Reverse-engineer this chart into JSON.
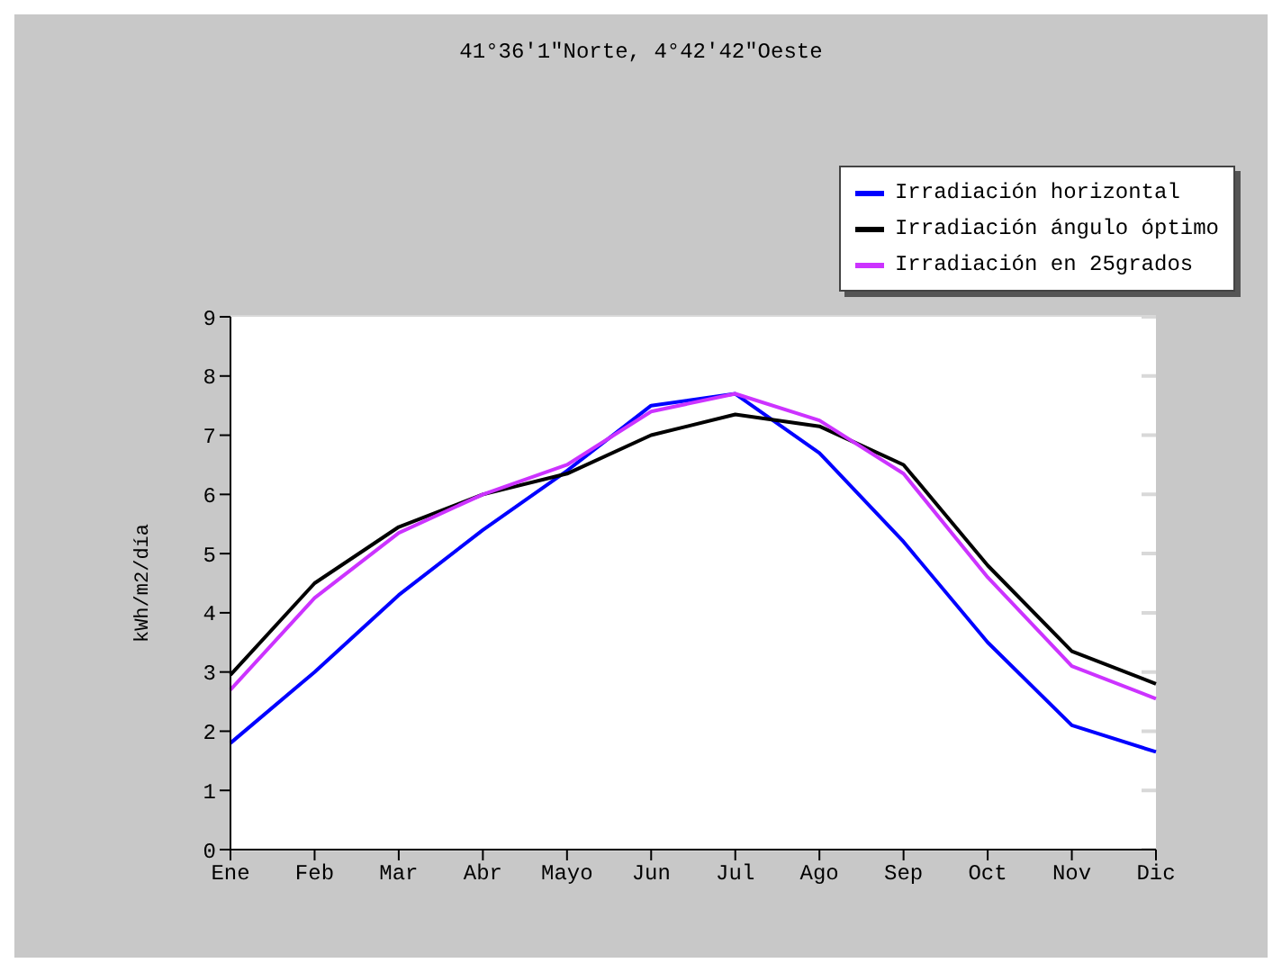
{
  "chart_data": {
    "type": "line",
    "title": "41°36'1\"Norte, 4°42'42\"Oeste",
    "ylabel": "kWh/m2/día",
    "categories": [
      "Ene",
      "Feb",
      "Mar",
      "Abr",
      "Mayo",
      "Jun",
      "Jul",
      "Ago",
      "Sep",
      "Oct",
      "Nov",
      "Dic"
    ],
    "series": [
      {
        "name": "Irradiación horizontal",
        "color": "#0000ff",
        "values": [
          1.8,
          3.0,
          4.3,
          5.4,
          6.4,
          7.5,
          7.7,
          6.7,
          5.2,
          3.5,
          2.1,
          1.65
        ]
      },
      {
        "name": "Irradiación ángulo óptimo",
        "color": "#000000",
        "values": [
          2.95,
          4.5,
          5.45,
          6.0,
          6.35,
          7.0,
          7.35,
          7.15,
          6.5,
          4.8,
          3.35,
          2.8
        ]
      },
      {
        "name": "Irradiación en 25grados",
        "color": "#cc33ff",
        "values": [
          2.7,
          4.25,
          5.35,
          6.0,
          6.5,
          7.4,
          7.7,
          7.25,
          6.35,
          4.6,
          3.1,
          2.55
        ]
      }
    ],
    "ylim": [
      0,
      9
    ],
    "yticks": [
      0,
      1,
      2,
      3,
      4,
      5,
      6,
      7,
      8,
      9
    ],
    "grid": "y",
    "legend": "top right",
    "marker": "none",
    "line_style": "solid"
  }
}
